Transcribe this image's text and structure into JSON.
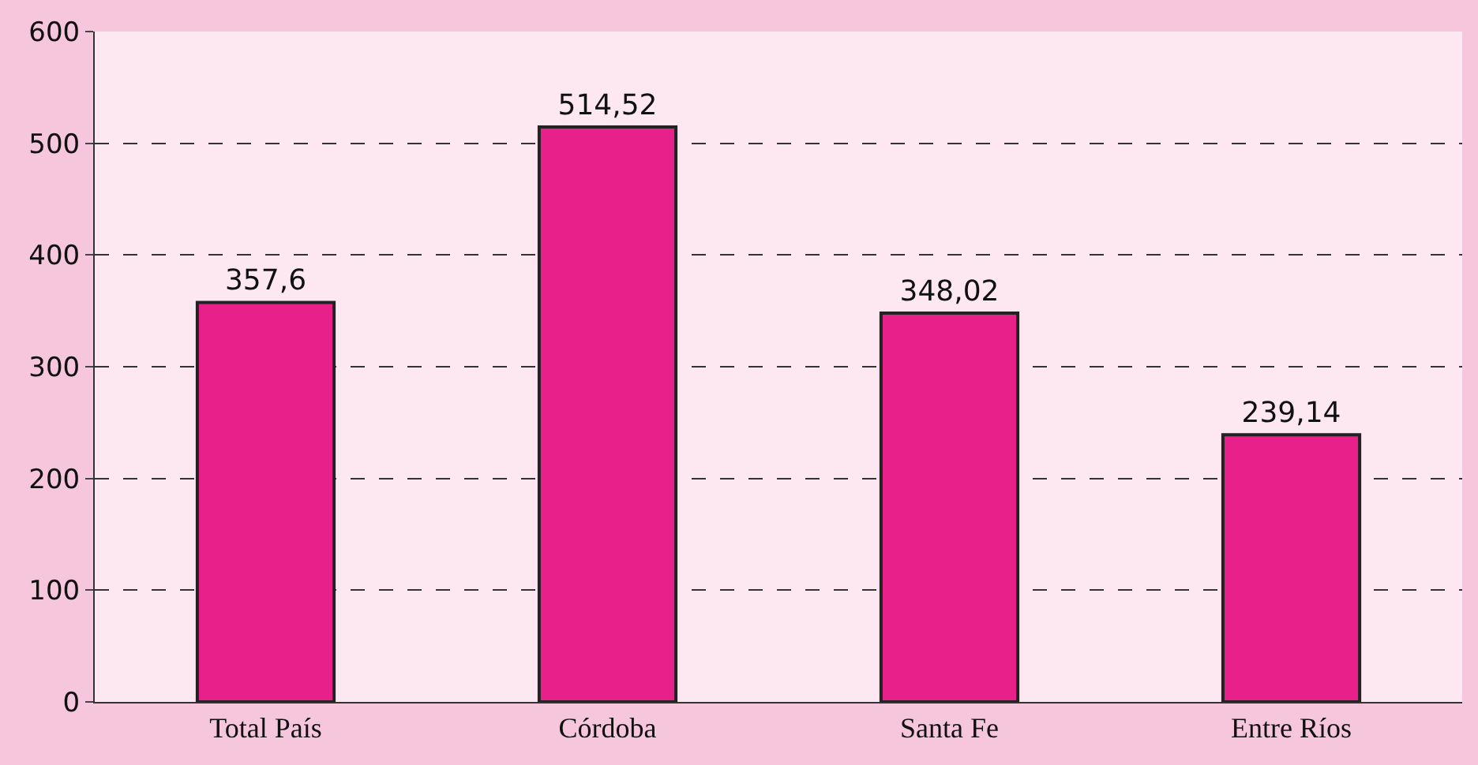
{
  "chart_data": {
    "type": "bar",
    "categories": [
      "Total País",
      "Córdoba",
      "Santa Fe",
      "Entre Ríos"
    ],
    "values": [
      357.6,
      514.52,
      348.02,
      239.14
    ],
    "value_labels": [
      "357,6",
      "514,52",
      "348,02",
      "239,14"
    ],
    "color": "#e8208a",
    "ylim": [
      0,
      600
    ],
    "yticks": [
      0,
      100,
      200,
      300,
      400,
      500,
      600
    ],
    "grid": "y",
    "legend": false
  }
}
